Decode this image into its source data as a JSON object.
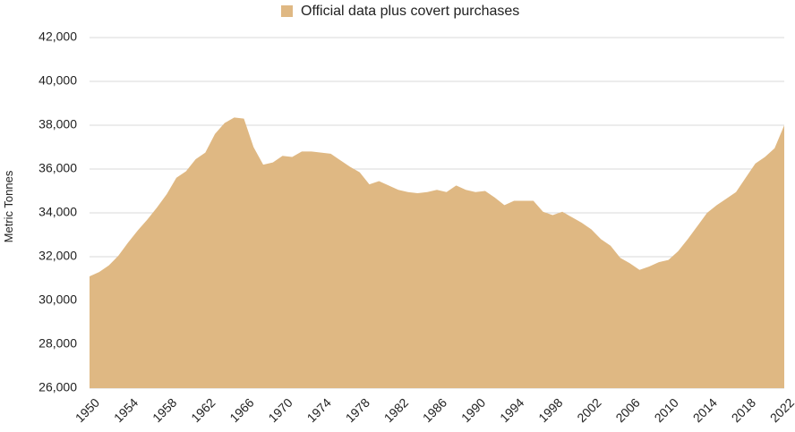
{
  "chart_data": {
    "type": "area",
    "title": "",
    "xlabel": "",
    "ylabel": "Metric Tonnes",
    "xlim": [
      1950,
      2022
    ],
    "ylim": [
      26000,
      42000
    ],
    "grid": true,
    "legend_position": "top-center",
    "y_ticks": [
      "26,000",
      "28,000",
      "30,000",
      "32,000",
      "34,000",
      "36,000",
      "38,000",
      "40,000",
      "42,000"
    ],
    "x_ticks": [
      "1950",
      "1954",
      "1958",
      "1962",
      "1966",
      "1970",
      "1974",
      "1978",
      "1982",
      "1986",
      "1990",
      "1994",
      "1998",
      "2002",
      "2006",
      "2010",
      "2014",
      "2018",
      "2022"
    ],
    "series": [
      {
        "name": "Official data plus covert purchases",
        "color": "#dfb883",
        "x": [
          1950,
          1951,
          1952,
          1953,
          1954,
          1955,
          1956,
          1957,
          1958,
          1959,
          1960,
          1961,
          1962,
          1963,
          1964,
          1965,
          1966,
          1967,
          1968,
          1969,
          1970,
          1971,
          1972,
          1973,
          1974,
          1975,
          1976,
          1977,
          1978,
          1979,
          1980,
          1981,
          1982,
          1983,
          1984,
          1985,
          1986,
          1987,
          1988,
          1989,
          1990,
          1991,
          1992,
          1993,
          1994,
          1995,
          1996,
          1997,
          1998,
          1999,
          2000,
          2001,
          2002,
          2003,
          2004,
          2005,
          2006,
          2007,
          2008,
          2009,
          2010,
          2011,
          2012,
          2013,
          2014,
          2015,
          2016,
          2017,
          2018,
          2019,
          2020,
          2021,
          2022
        ],
        "values": [
          31100,
          31300,
          31600,
          32050,
          32650,
          33200,
          33700,
          34250,
          34850,
          35600,
          35900,
          36450,
          36750,
          37600,
          38100,
          38350,
          38300,
          37000,
          36200,
          36300,
          36600,
          36550,
          36800,
          36800,
          36750,
          36700,
          36400,
          36100,
          35850,
          35300,
          35450,
          35250,
          35050,
          34950,
          34900,
          34950,
          35050,
          34950,
          35250,
          35050,
          34950,
          35000,
          34700,
          34350,
          34550,
          34550,
          34550,
          34050,
          33900,
          34050,
          33800,
          33550,
          33250,
          32800,
          32500,
          31950,
          31700,
          31400,
          31550,
          31750,
          31850,
          32250,
          32800,
          33400,
          34000,
          34350,
          34650,
          34950,
          35600,
          36250,
          36550,
          36950,
          38000
        ]
      }
    ]
  }
}
